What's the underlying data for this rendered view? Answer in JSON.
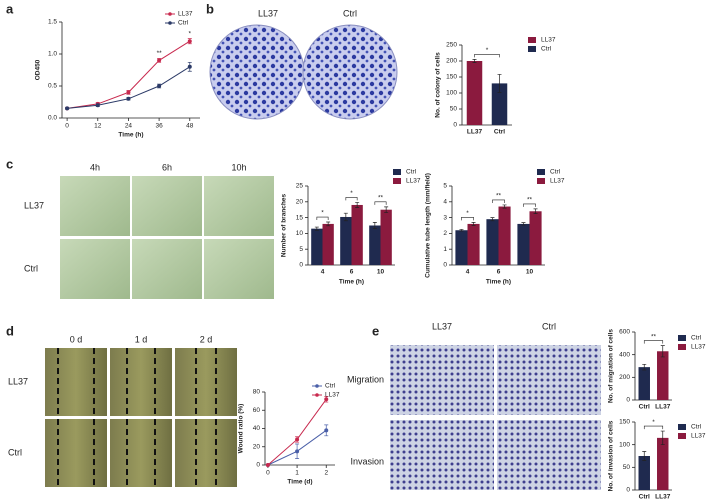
{
  "figure": {
    "panels": [
      "a",
      "b",
      "c",
      "d",
      "e"
    ],
    "b_labels": [
      "LL37",
      "Ctrl"
    ],
    "c_columns": [
      "4h",
      "6h",
      "10h"
    ],
    "c_rows": [
      "LL37",
      "Ctrl"
    ],
    "d_columns": [
      "0 d",
      "1 d",
      "2 d"
    ],
    "d_rows": [
      "LL37",
      "Ctrl"
    ],
    "e_columns": [
      "LL37",
      "Ctrl"
    ],
    "e_rows": [
      "Migration",
      "Invasion"
    ]
  },
  "chart_data": [
    {
      "type": "line",
      "x": [
        0,
        12,
        24,
        36,
        48
      ],
      "xlim": [
        -2,
        52
      ],
      "xticks": [
        0,
        12,
        24,
        36,
        48
      ],
      "xlabel": "Time (h)",
      "ylabel": "OD450",
      "ylim": [
        0,
        1.5
      ],
      "yticks": [
        {
          "value": 0,
          "label": "0.0"
        },
        0.5,
        {
          "value": 1,
          "label": "1.0"
        },
        1.5
      ],
      "legend": "inside",
      "series": [
        {
          "name": "LL37",
          "color": "#c8294e",
          "values": [
            0.15,
            0.22,
            0.4,
            0.9,
            1.2
          ],
          "errors": [
            0.01,
            0.02,
            0.03,
            0.03,
            0.04
          ]
        },
        {
          "name": "Ctrl",
          "color": "#2b3a67",
          "values": [
            0.15,
            0.2,
            0.3,
            0.5,
            0.8
          ],
          "errors": [
            0.01,
            0.02,
            0.02,
            0.03,
            0.07
          ]
        }
      ],
      "significance": [
        null,
        null,
        null,
        "**",
        "*"
      ]
    },
    {
      "type": "bar",
      "categories": [
        "LL37",
        "Ctrl"
      ],
      "values": [
        200,
        130
      ],
      "errors": [
        5,
        28
      ],
      "colors": [
        "#8b1a3e",
        "#1f2a4f"
      ],
      "ylabel": "No. of colony of cells",
      "ylim": [
        0,
        250
      ],
      "yticks": [
        0,
        50,
        100,
        150,
        200,
        250
      ],
      "legend": "outside",
      "significance": "*"
    },
    {
      "type": "bar",
      "categories": [
        "4",
        "6",
        "10"
      ],
      "xlabel": "Time (h)",
      "ylabel": "Number of branches",
      "ylim": [
        0,
        25
      ],
      "yticks": [
        0,
        5,
        10,
        15,
        20,
        25
      ],
      "legend": "outside",
      "series": [
        {
          "name": "Ctrl",
          "color": "#1f2a4f",
          "values": [
            11.5,
            15.2,
            12.5
          ],
          "errors": [
            0.5,
            1.2,
            1
          ]
        },
        {
          "name": "LL37",
          "color": "#8b1a3e",
          "values": [
            13,
            19,
            17.5
          ],
          "errors": [
            0.6,
            0.8,
            0.9
          ]
        }
      ],
      "significance": [
        "*",
        "*",
        "**"
      ]
    },
    {
      "type": "bar",
      "categories": [
        "4",
        "6",
        "10"
      ],
      "xlabel": "Time (h)",
      "ylabel": "Cumulative tube length (mm/field)",
      "ylim": [
        0,
        5
      ],
      "yticks": [
        0,
        1,
        2,
        3,
        4,
        5
      ],
      "legend": "outside",
      "series": [
        {
          "name": "Ctrl",
          "color": "#1f2a4f",
          "values": [
            2.2,
            2.9,
            2.6
          ],
          "errors": [
            0.05,
            0.1,
            0.08
          ]
        },
        {
          "name": "LL37",
          "color": "#8b1a3e",
          "values": [
            2.6,
            3.7,
            3.4
          ],
          "errors": [
            0.1,
            0.1,
            0.15
          ]
        }
      ],
      "significance": [
        "*",
        "**",
        "**"
      ]
    },
    {
      "type": "line",
      "x": [
        0,
        1,
        2
      ],
      "xlim": [
        -0.1,
        2.3
      ],
      "xticks": [
        0,
        1,
        2
      ],
      "xlabel": "Time (d)",
      "ylabel": "Wound ratio (%)",
      "ylim": [
        0,
        80
      ],
      "yticks": [
        0,
        20,
        40,
        60,
        80
      ],
      "legend": "inside",
      "series": [
        {
          "name": "Ctrl",
          "color": "#4a5fa8",
          "values": [
            0,
            15,
            38
          ],
          "errors": [
            0,
            8,
            6
          ]
        },
        {
          "name": "LL37",
          "color": "#c8294e",
          "values": [
            0,
            28,
            72
          ],
          "errors": [
            0,
            3,
            3
          ]
        }
      ]
    },
    {
      "type": "bar",
      "categories": [
        "Ctrl",
        "LL37"
      ],
      "values": [
        290,
        430
      ],
      "errors": [
        25,
        50
      ],
      "colors": [
        "#1f2a4f",
        "#8b1a3e"
      ],
      "ylabel": "No. of migration of cells",
      "ylim": [
        0,
        600
      ],
      "yticks": [
        0,
        200,
        400,
        600
      ],
      "legend": "outside",
      "significance": "**"
    },
    {
      "type": "bar",
      "categories": [
        "Ctrl",
        "LL37"
      ],
      "values": [
        75,
        115
      ],
      "errors": [
        10,
        15
      ],
      "colors": [
        "#1f2a4f",
        "#8b1a3e"
      ],
      "ylabel": "No. of invasion of cells",
      "ylim": [
        0,
        150
      ],
      "yticks": [
        0,
        50,
        100,
        150
      ],
      "legend": "outside",
      "significance": "*"
    }
  ]
}
